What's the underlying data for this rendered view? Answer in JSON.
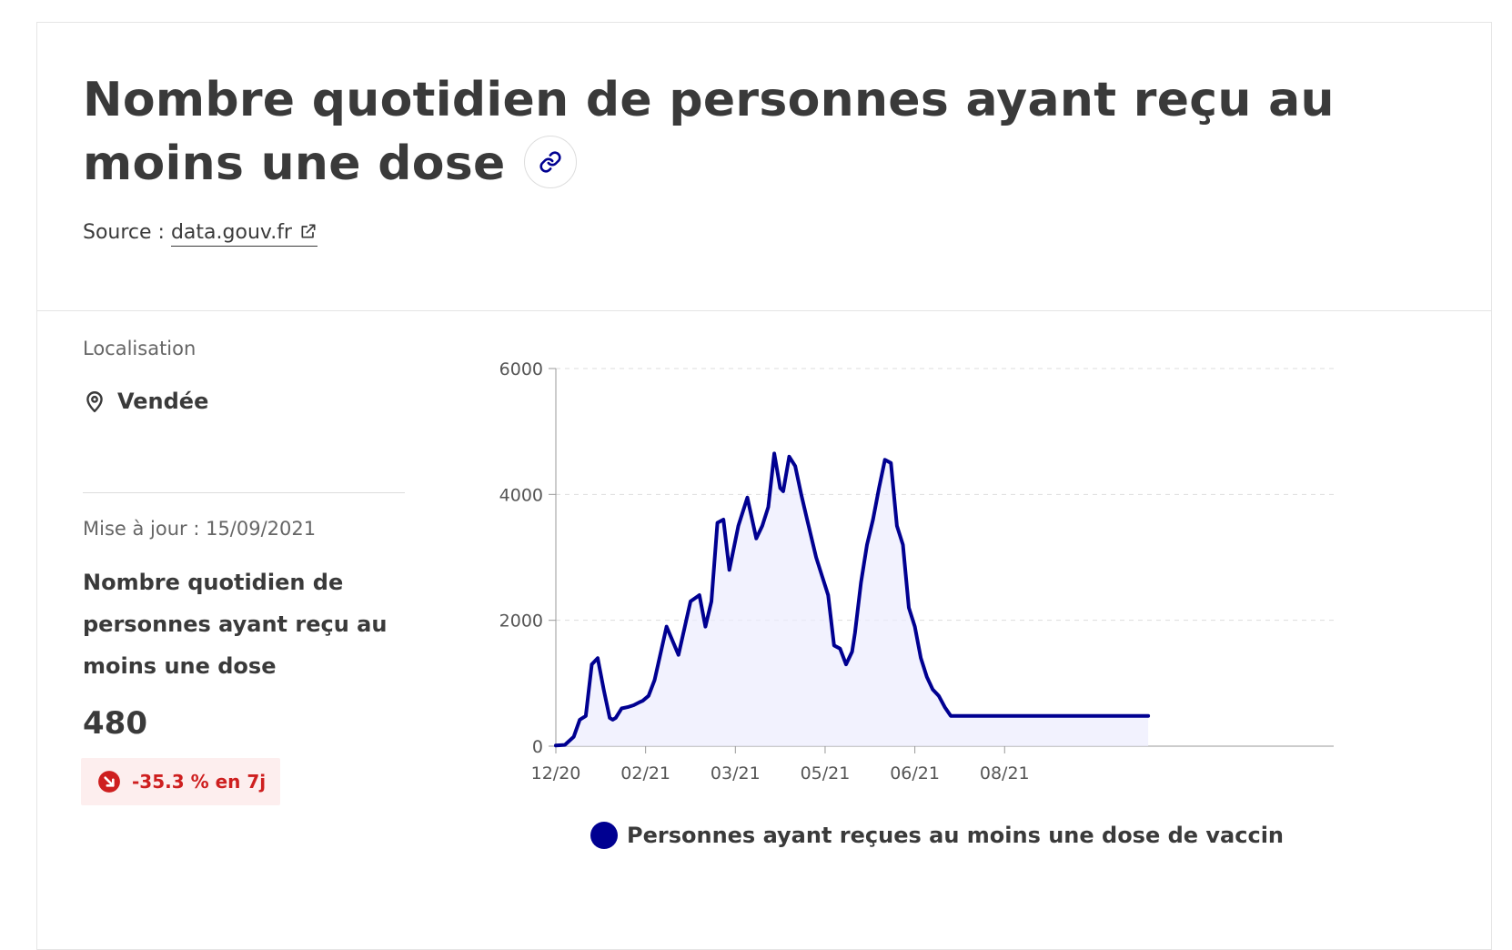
{
  "header": {
    "title": "Nombre quotidien de personnes ayant reçu au moins une dose",
    "link_icon": "link-icon",
    "source_prefix": "Source :",
    "source_link": "data.gouv.fr",
    "external_icon": "external-link-icon"
  },
  "sidebar": {
    "location_label": "Localisation",
    "location_icon": "map-pin-icon",
    "location_value": "Vendée",
    "update_label": "Mise à jour : 15/09/2021",
    "indicator_title": "Nombre quotidien de personnes ayant reçu au moins une dose",
    "indicator_value": "480",
    "trend_icon": "arrow-down-right-icon",
    "trend_text": "-35.3 % en 7j"
  },
  "colors": {
    "series": "#000091",
    "area": "#ececfe",
    "trend": "#ce1f1f",
    "trend_bg": "#fdeeee",
    "grid": "#dddddd"
  },
  "chart_data": {
    "type": "line",
    "title": "",
    "xlabel": "",
    "ylabel": "",
    "ylim": [
      0,
      6000
    ],
    "yticks": [
      "0",
      "2000",
      "4000",
      "6000"
    ],
    "xlim": [
      "2020-12-27",
      "2021-09-13"
    ],
    "xticks": [
      {
        "label": "12/20",
        "date": "2020-12-27"
      },
      {
        "label": "02/21",
        "date": "2021-01-26"
      },
      {
        "label": "03/21",
        "date": "2021-02-25"
      },
      {
        "label": "05/21",
        "date": "2021-03-27"
      },
      {
        "label": "06/21",
        "date": "2021-04-26"
      },
      {
        "label": "08/21",
        "date": "2021-05-26"
      }
    ],
    "grid": true,
    "legend_position": "bottom",
    "series": [
      {
        "name": "Personnes ayant reçues au moins une dose de vaccin",
        "x": [
          "2020-12-27",
          "2020-12-30",
          "2021-01-02",
          "2021-01-04",
          "2021-01-06",
          "2021-01-08",
          "2021-01-10",
          "2021-01-12",
          "2021-01-14",
          "2021-01-15",
          "2021-01-16",
          "2021-01-18",
          "2021-01-20",
          "2021-01-22",
          "2021-01-24",
          "2021-01-25",
          "2021-01-27",
          "2021-01-29",
          "2021-02-02",
          "2021-02-06",
          "2021-02-10",
          "2021-02-13",
          "2021-02-15",
          "2021-02-17",
          "2021-02-19",
          "2021-02-21",
          "2021-02-23",
          "2021-02-26",
          "2021-03-01",
          "2021-03-04",
          "2021-03-06",
          "2021-03-08",
          "2021-03-10",
          "2021-03-12",
          "2021-03-13",
          "2021-03-15",
          "2021-03-17",
          "2021-03-19",
          "2021-03-21",
          "2021-03-22",
          "2021-03-24",
          "2021-03-26",
          "2021-03-28",
          "2021-03-30",
          "2021-04-01",
          "2021-04-03",
          "2021-04-05",
          "2021-04-06",
          "2021-04-08",
          "2021-04-10",
          "2021-04-12",
          "2021-04-14",
          "2021-04-16",
          "2021-04-18",
          "2021-04-20",
          "2021-04-22",
          "2021-04-24",
          "2021-04-26",
          "2021-04-28",
          "2021-04-30",
          "2021-05-02",
          "2021-05-04",
          "2021-05-06",
          "2021-05-08",
          "2021-05-10",
          "2021-05-12",
          "2021-05-14",
          "2021-05-16",
          "2021-05-18",
          "2021-05-20",
          "2021-05-22",
          "2021-05-24",
          "2021-05-26",
          "2021-05-28",
          "2021-05-30",
          "2021-06-01",
          "2021-06-03",
          "2021-06-05",
          "2021-06-07",
          "2021-06-09",
          "2021-06-11",
          "2021-06-13",
          "2021-06-15",
          "2021-06-17",
          "2021-06-19",
          "2021-06-21",
          "2021-06-24",
          "2021-06-27",
          "2021-06-30",
          "2021-07-03",
          "2021-07-06",
          "2021-07-09",
          "2021-07-13"
        ],
        "values": [
          10,
          20,
          150,
          420,
          480,
          1300,
          1400,
          900,
          450,
          420,
          450,
          600,
          620,
          650,
          700,
          720,
          800,
          1050,
          1900,
          1450,
          2300,
          2400,
          1900,
          2300,
          3550,
          3600,
          2800,
          3500,
          3950,
          3300,
          3500,
          3800,
          4650,
          4100,
          4050,
          4600,
          4450,
          4000,
          3600,
          3400,
          3000,
          2700,
          2400,
          1600,
          1550,
          1300,
          1500,
          1800,
          2600,
          3200,
          3600,
          4100,
          4550,
          4500,
          3500,
          3200,
          2200,
          1900,
          1400,
          1100,
          900,
          800,
          620,
          480,
          480,
          480,
          480,
          480,
          480,
          480,
          480,
          480,
          480,
          480,
          480,
          480,
          480,
          480,
          480,
          480,
          480,
          480,
          480,
          480,
          480,
          480,
          480,
          480,
          480,
          480,
          480,
          480,
          480
        ]
      }
    ]
  }
}
